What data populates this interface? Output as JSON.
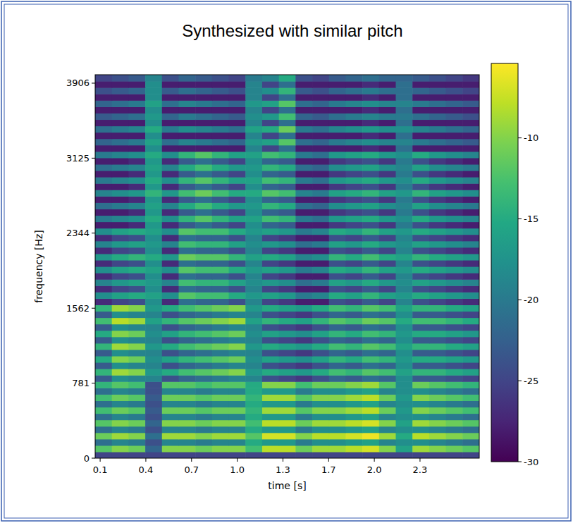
{
  "chart_data": {
    "type": "heatmap",
    "title": "Synthesized with similar pitch",
    "x_label": "time [s]",
    "y_label": "frequency [Hz]",
    "xlim": [
      0.066,
      2.676
    ],
    "ylim": [
      0,
      3994
    ],
    "xticks": [
      0.1,
      {
        "value": 0.4105,
        "label": "0.4"
      },
      {
        "value": 0.721,
        "label": "0.7"
      },
      {
        "value": 1.0315,
        "label": "1.0"
      },
      {
        "value": 1.342,
        "label": "1.3"
      },
      {
        "value": 1.6525,
        "label": "1.7"
      },
      {
        "value": 1.963,
        "label": "2.0"
      },
      {
        "value": 2.2735,
        "label": "2.3"
      }
    ],
    "yticks": [
      0,
      781,
      1562,
      2344,
      3125,
      3906
    ],
    "colorbar": {
      "range": [
        -30,
        -5.4
      ],
      "ticks": [
        -10,
        -15,
        -20,
        -25,
        -30
      ]
    },
    "cells": [
      [
        -25,
        -25,
        -25,
        -25,
        -25,
        -25,
        -25,
        -25,
        -25,
        -25,
        -25,
        -25,
        -25,
        -25,
        -25,
        -25,
        -25,
        -25,
        -25,
        -25,
        -25,
        -25,
        -25
      ],
      [
        -12,
        -10,
        -11,
        -22,
        -10,
        -10,
        -11,
        -10,
        -10,
        -13,
        -8,
        -8,
        -11,
        -9,
        -9,
        -8,
        -7,
        -10,
        -16,
        -9,
        -10,
        -11,
        -12
      ],
      [
        -21,
        -19,
        -20,
        -24,
        -19,
        -19,
        -20,
        -19,
        -19,
        -15,
        -17,
        -17,
        -20,
        -18,
        -18,
        -17,
        -16,
        -19,
        -18,
        -18,
        -19,
        -20,
        -21
      ],
      [
        -11,
        -9,
        -10,
        -21,
        -9,
        -9,
        -10,
        -9,
        -9,
        -12,
        -7,
        -7,
        -10,
        -8,
        -8,
        -7,
        -6,
        -9,
        -15,
        -8,
        -9,
        -10,
        -11
      ],
      [
        -21,
        -19,
        -20,
        -24,
        -19,
        -19,
        -20,
        -19,
        -19,
        -15,
        -17,
        -17,
        -20,
        -18,
        -18,
        -17,
        -16,
        -19,
        -18,
        -18,
        -19,
        -20,
        -21
      ],
      [
        -12,
        -10,
        -11,
        -22,
        -10,
        -10,
        -11,
        -10,
        -10,
        -13,
        -8,
        -8,
        -11,
        -9,
        -9,
        -8,
        -7,
        -10,
        -16,
        -9,
        -10,
        -11,
        -12
      ],
      [
        -21,
        -19,
        -20,
        -24,
        -19,
        -19,
        -20,
        -19,
        -19,
        -15,
        -17,
        -17,
        -20,
        -18,
        -18,
        -17,
        -16,
        -19,
        -18,
        -18,
        -19,
        -20,
        -21
      ],
      [
        -13,
        -11,
        -12,
        -23,
        -11,
        -11,
        -12,
        -11,
        -11,
        -14,
        -9,
        -9,
        -12,
        -10,
        -10,
        -9,
        -8,
        -11,
        -17,
        -10,
        -11,
        -12,
        -13
      ],
      [
        -21,
        -19,
        -20,
        -24,
        -19,
        -19,
        -20,
        -19,
        -19,
        -15,
        -17,
        -17,
        -20,
        -18,
        -18,
        -17,
        -16,
        -19,
        -18,
        -18,
        -19,
        -20,
        -21
      ],
      [
        -13,
        -11,
        -12,
        -23,
        -11,
        -11,
        -12,
        -11,
        -11,
        -14,
        -9,
        -9,
        -12,
        -10,
        -10,
        -9,
        -8,
        -11,
        -17,
        -10,
        -11,
        -12,
        -13
      ],
      [
        -21,
        -19,
        -20,
        -24,
        -19,
        -19,
        -20,
        -19,
        -19,
        -15,
        -17,
        -17,
        -20,
        -18,
        -18,
        -17,
        -16,
        -19,
        -18,
        -18,
        -19,
        -20,
        -21
      ],
      [
        -14,
        -12,
        -13,
        -24,
        -12,
        -12,
        -13,
        -12,
        -12,
        -15,
        -10,
        -10,
        -13,
        -11,
        -11,
        -10,
        -9,
        -12,
        -18,
        -11,
        -12,
        -13,
        -14
      ],
      [
        -23,
        -18,
        -19,
        -19,
        -24,
        -22,
        -21,
        -20,
        -19,
        -19,
        -24,
        -25,
        -26,
        -24,
        -22,
        -23,
        -21,
        -22,
        -18,
        -23,
        -23,
        -24,
        -25
      ],
      [
        -14,
        -9,
        -10,
        -17,
        -15,
        -13,
        -12,
        -11,
        -10,
        -17,
        -15,
        -16,
        -17,
        -15,
        -13,
        -14,
        -12,
        -13,
        -16,
        -14,
        -14,
        -15,
        -16
      ],
      [
        -23,
        -18,
        -19,
        -19,
        -24,
        -22,
        -21,
        -20,
        -19,
        -19,
        -24,
        -25,
        -26,
        -24,
        -22,
        -23,
        -21,
        -22,
        -18,
        -23,
        -23,
        -24,
        -25
      ],
      [
        -15,
        -10,
        -11,
        -18,
        -16,
        -14,
        -13,
        -12,
        -11,
        -18,
        -16,
        -17,
        -18,
        -16,
        -14,
        -15,
        -13,
        -14,
        -17,
        -15,
        -15,
        -16,
        -17
      ],
      [
        -23,
        -18,
        -19,
        -19,
        -24,
        -22,
        -21,
        -20,
        -19,
        -19,
        -24,
        -25,
        -26,
        -24,
        -22,
        -23,
        -21,
        -22,
        -18,
        -23,
        -23,
        -24,
        -25
      ],
      [
        -14,
        -9,
        -10,
        -17,
        -15,
        -13,
        -12,
        -11,
        -10,
        -17,
        -15,
        -16,
        -17,
        -15,
        -13,
        -14,
        -12,
        -13,
        -16,
        -14,
        -14,
        -15,
        -16
      ],
      [
        -23,
        -18,
        -19,
        -19,
        -24,
        -22,
        -21,
        -20,
        -19,
        -19,
        -24,
        -25,
        -26,
        -24,
        -22,
        -23,
        -21,
        -22,
        -18,
        -23,
        -23,
        -24,
        -25
      ],
      [
        -15,
        -10,
        -11,
        -18,
        -16,
        -14,
        -13,
        -12,
        -11,
        -18,
        -16,
        -17,
        -18,
        -16,
        -14,
        -15,
        -13,
        -14,
        -17,
        -15,
        -15,
        -16,
        -17
      ],
      [
        -23,
        -18,
        -19,
        -19,
        -24,
        -22,
        -21,
        -20,
        -19,
        -19,
        -24,
        -25,
        -26,
        -24,
        -22,
        -23,
        -21,
        -22,
        -18,
        -23,
        -23,
        -24,
        -25
      ],
      [
        -13,
        -8,
        -9,
        -16,
        -14,
        -12,
        -11,
        -10,
        -9,
        -16,
        -14,
        -15,
        -16,
        -14,
        -12,
        -13,
        -11,
        -12,
        -15,
        -13,
        -13,
        -14,
        -15
      ],
      [
        -23,
        -18,
        -19,
        -19,
        -24,
        -22,
        -21,
        -20,
        -19,
        -19,
        -24,
        -25,
        -26,
        -24,
        -22,
        -23,
        -21,
        -22,
        -18,
        -23,
        -23,
        -24,
        -25
      ],
      [
        -14,
        -9,
        -10,
        -17,
        -15,
        -13,
        -12,
        -11,
        -10,
        -17,
        -15,
        -16,
        -17,
        -15,
        -13,
        -14,
        -12,
        -13,
        -16,
        -14,
        -14,
        -15,
        -16
      ],
      [
        -27,
        -25,
        -24,
        -18,
        -27,
        -21,
        -22,
        -22,
        -24,
        -19,
        -25,
        -26,
        -28,
        -28,
        -24,
        -25,
        -23,
        -25,
        -19,
        -24,
        -25,
        -26,
        -27
      ],
      [
        -18,
        -16,
        -15,
        -16,
        -18,
        -12,
        -13,
        -13,
        -15,
        -17,
        -16,
        -17,
        -20,
        -19,
        -15,
        -16,
        -14,
        -16,
        -17,
        -15,
        -16,
        -17,
        -18
      ],
      [
        -27,
        -25,
        -24,
        -18,
        -27,
        -21,
        -22,
        -22,
        -24,
        -19,
        -25,
        -26,
        -28,
        -28,
        -24,
        -25,
        -23,
        -25,
        -19,
        -24,
        -25,
        -26,
        -27
      ],
      [
        -19,
        -17,
        -16,
        -17,
        -19,
        -13,
        -14,
        -14,
        -16,
        -18,
        -17,
        -18,
        -21,
        -20,
        -16,
        -17,
        -15,
        -17,
        -18,
        -16,
        -17,
        -18,
        -19
      ],
      [
        -27,
        -25,
        -24,
        -18,
        -27,
        -21,
        -22,
        -22,
        -24,
        -19,
        -25,
        -26,
        -28,
        -28,
        -24,
        -25,
        -23,
        -25,
        -19,
        -24,
        -25,
        -26,
        -27
      ],
      [
        -18,
        -16,
        -15,
        -16,
        -18,
        -12,
        -13,
        -13,
        -15,
        -17,
        -16,
        -17,
        -20,
        -19,
        -15,
        -16,
        -14,
        -16,
        -17,
        -15,
        -16,
        -17,
        -18
      ],
      [
        -27,
        -25,
        -24,
        -18,
        -27,
        -21,
        -22,
        -22,
        -24,
        -19,
        -25,
        -26,
        -28,
        -28,
        -24,
        -25,
        -23,
        -25,
        -19,
        -24,
        -25,
        -26,
        -27
      ],
      [
        -17,
        -15,
        -14,
        -15,
        -17,
        -11,
        -12,
        -12,
        -14,
        -16,
        -15,
        -16,
        -19,
        -18,
        -14,
        -15,
        -13,
        -15,
        -16,
        -14,
        -15,
        -16,
        -17
      ],
      [
        -27,
        -25,
        -24,
        -18,
        -27,
        -21,
        -22,
        -22,
        -24,
        -19,
        -25,
        -26,
        -28,
        -28,
        -24,
        -25,
        -23,
        -25,
        -19,
        -24,
        -25,
        -26,
        -27
      ],
      [
        -19,
        -17,
        -16,
        -17,
        -19,
        -13,
        -14,
        -14,
        -16,
        -18,
        -17,
        -18,
        -21,
        -20,
        -16,
        -17,
        -15,
        -17,
        -18,
        -16,
        -17,
        -18,
        -19
      ],
      [
        -27,
        -25,
        -24,
        -18,
        -27,
        -21,
        -22,
        -22,
        -24,
        -19,
        -25,
        -26,
        -28,
        -28,
        -24,
        -25,
        -23,
        -25,
        -19,
        -24,
        -25,
        -26,
        -27
      ],
      [
        -18,
        -16,
        -15,
        -16,
        -18,
        -12,
        -13,
        -13,
        -15,
        -17,
        -16,
        -17,
        -20,
        -19,
        -15,
        -16,
        -14,
        -16,
        -17,
        -15,
        -16,
        -17,
        -18
      ],
      [
        -28,
        -28,
        -27,
        -17,
        -27,
        -23,
        -21,
        -23,
        -25,
        -18,
        -22,
        -23,
        -28,
        -28,
        -26,
        -25,
        -24,
        -26,
        -20,
        -24,
        -26,
        -27,
        -28
      ],
      [
        -20,
        -19,
        -18,
        -15,
        -18,
        -14,
        -12,
        -14,
        -16,
        -16,
        -13,
        -14,
        -20,
        -21,
        -17,
        -16,
        -15,
        -17,
        -18,
        -15,
        -17,
        -18,
        -19
      ],
      [
        -28,
        -28,
        -27,
        -17,
        -27,
        -23,
        -21,
        -23,
        -25,
        -18,
        -22,
        -23,
        -28,
        -28,
        -26,
        -25,
        -24,
        -26,
        -20,
        -24,
        -26,
        -27,
        -28
      ],
      [
        -21,
        -20,
        -19,
        -16,
        -19,
        -15,
        -13,
        -15,
        -17,
        -17,
        -14,
        -15,
        -21,
        -22,
        -18,
        -17,
        -16,
        -18,
        -19,
        -16,
        -18,
        -19,
        -20
      ],
      [
        -28,
        -28,
        -27,
        -17,
        -27,
        -23,
        -21,
        -23,
        -25,
        -18,
        -22,
        -23,
        -28,
        -28,
        -26,
        -25,
        -24,
        -26,
        -20,
        -24,
        -26,
        -27,
        -28
      ],
      [
        -19,
        -18,
        -17,
        -14,
        -17,
        -13,
        -11,
        -13,
        -15,
        -15,
        -12,
        -13,
        -19,
        -20,
        -16,
        -15,
        -14,
        -16,
        -17,
        -14,
        -16,
        -17,
        -18
      ],
      [
        -28,
        -28,
        -27,
        -17,
        -27,
        -23,
        -21,
        -23,
        -25,
        -18,
        -22,
        -23,
        -28,
        -28,
        -26,
        -25,
        -24,
        -26,
        -20,
        -24,
        -26,
        -27,
        -28
      ],
      [
        -20,
        -19,
        -18,
        -15,
        -18,
        -14,
        -12,
        -14,
        -16,
        -16,
        -13,
        -14,
        -20,
        -21,
        -17,
        -16,
        -15,
        -17,
        -18,
        -15,
        -17,
        -18,
        -19
      ],
      [
        -28,
        -28,
        -27,
        -17,
        -27,
        -23,
        -21,
        -23,
        -25,
        -18,
        -22,
        -23,
        -28,
        -28,
        -26,
        -25,
        -24,
        -26,
        -20,
        -24,
        -26,
        -27,
        -28
      ],
      [
        -21,
        -20,
        -19,
        -16,
        -19,
        -15,
        -13,
        -15,
        -17,
        -17,
        -14,
        -15,
        -21,
        -22,
        -18,
        -17,
        -16,
        -18,
        -19,
        -16,
        -18,
        -19,
        -20
      ],
      [
        -28,
        -28,
        -27,
        -17,
        -27,
        -23,
        -21,
        -23,
        -25,
        -18,
        -22,
        -23,
        -28,
        -28,
        -26,
        -25,
        -24,
        -26,
        -20,
        -24,
        -26,
        -27,
        -28
      ],
      [
        -20,
        -19,
        -18,
        -15,
        -18,
        -14,
        -12,
        -14,
        -16,
        -16,
        -13,
        -14,
        -20,
        -21,
        -17,
        -16,
        -15,
        -17,
        -18,
        -15,
        -17,
        -18,
        -19
      ],
      [
        -28,
        -28,
        -28,
        -18,
        -28,
        -28,
        -28,
        -28,
        -28,
        -19,
        -25,
        -21,
        -28,
        -28,
        -28,
        -28,
        -27,
        -28,
        -21,
        -28,
        -28,
        -28,
        -28
      ],
      [
        -22,
        -21,
        -20,
        -16,
        -21,
        -19,
        -20,
        -21,
        -22,
        -17,
        -16,
        -12,
        -21,
        -22,
        -20,
        -19,
        -18,
        -19,
        -19,
        -20,
        -21,
        -22,
        -23
      ],
      [
        -28,
        -28,
        -28,
        -18,
        -28,
        -28,
        -28,
        -28,
        -28,
        -19,
        -25,
        -21,
        -28,
        -28,
        -28,
        -28,
        -27,
        -28,
        -21,
        -28,
        -28,
        -28,
        -28
      ],
      [
        -21,
        -20,
        -19,
        -15,
        -20,
        -18,
        -19,
        -20,
        -21,
        -16,
        -15,
        -11,
        -20,
        -21,
        -19,
        -18,
        -17,
        -18,
        -18,
        -19,
        -20,
        -21,
        -22
      ],
      [
        -28,
        -28,
        -28,
        -18,
        -28,
        -28,
        -28,
        -28,
        -28,
        -19,
        -25,
        -21,
        -28,
        -28,
        -28,
        -28,
        -27,
        -28,
        -21,
        -28,
        -28,
        -28,
        -28
      ],
      [
        -23,
        -22,
        -21,
        -17,
        -22,
        -20,
        -21,
        -22,
        -23,
        -18,
        -17,
        -13,
        -22,
        -23,
        -21,
        -20,
        -19,
        -20,
        -20,
        -21,
        -22,
        -23,
        -24
      ],
      [
        -28,
        -28,
        -28,
        -18,
        -28,
        -28,
        -28,
        -28,
        -28,
        -19,
        -25,
        -21,
        -28,
        -28,
        -28,
        -28,
        -27,
        -28,
        -21,
        -28,
        -28,
        -28,
        -28
      ],
      [
        -22,
        -21,
        -20,
        -16,
        -21,
        -19,
        -20,
        -21,
        -22,
        -17,
        -16,
        -12,
        -21,
        -22,
        -20,
        -19,
        -18,
        -19,
        -19,
        -20,
        -21,
        -22,
        -23
      ],
      [
        -28,
        -28,
        -28,
        -18,
        -28,
        -28,
        -28,
        -28,
        -28,
        -19,
        -25,
        -21,
        -28,
        -28,
        -28,
        -28,
        -27,
        -28,
        -21,
        -28,
        -28,
        -28,
        -28
      ],
      [
        -24,
        -23,
        -22,
        -18,
        -23,
        -21,
        -22,
        -23,
        -24,
        -19,
        -18,
        -14,
        -23,
        -24,
        -22,
        -21,
        -20,
        -21,
        -21,
        -22,
        -23,
        -24,
        -25
      ],
      [
        -28,
        -28,
        -28,
        -18,
        -28,
        -28,
        -28,
        -28,
        -28,
        -19,
        -25,
        -21,
        -28,
        -28,
        -28,
        -28,
        -27,
        -28,
        -21,
        -28,
        -28,
        -28,
        -28
      ],
      [
        -25,
        -24,
        -23,
        -19,
        -24,
        -22,
        -23,
        -24,
        -25,
        -20,
        -19,
        -15,
        -24,
        -25,
        -23,
        -22,
        -21,
        -22,
        -22,
        -23,
        -24,
        -25,
        -26
      ]
    ]
  }
}
